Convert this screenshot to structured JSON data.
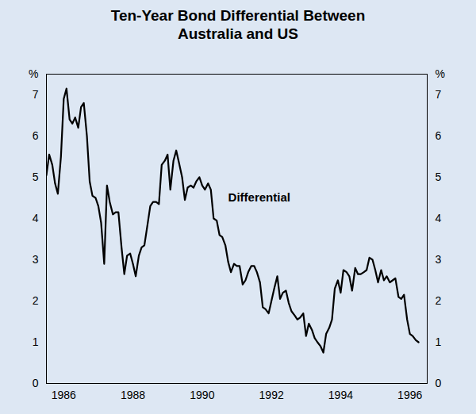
{
  "chart_data": {
    "type": "line",
    "title": "Ten-Year Bond Differential Between Australia and US",
    "x": [
      1986.0,
      1986.08,
      1986.17,
      1986.25,
      1986.33,
      1986.42,
      1986.5,
      1986.58,
      1986.67,
      1986.75,
      1986.83,
      1986.92,
      1987.0,
      1987.08,
      1987.17,
      1987.25,
      1987.33,
      1987.42,
      1987.5,
      1987.58,
      1987.67,
      1987.75,
      1987.83,
      1987.92,
      1988.0,
      1988.08,
      1988.17,
      1988.25,
      1988.33,
      1988.42,
      1988.5,
      1988.58,
      1988.67,
      1988.75,
      1988.83,
      1988.92,
      1989.0,
      1989.08,
      1989.17,
      1989.25,
      1989.33,
      1989.42,
      1989.5,
      1989.58,
      1989.67,
      1989.75,
      1989.83,
      1989.92,
      1990.0,
      1990.08,
      1990.17,
      1990.25,
      1990.33,
      1990.42,
      1990.5,
      1990.58,
      1990.67,
      1990.75,
      1990.83,
      1990.92,
      1991.0,
      1991.08,
      1991.17,
      1991.25,
      1991.33,
      1991.42,
      1991.5,
      1991.58,
      1991.67,
      1991.75,
      1991.83,
      1991.92,
      1992.0,
      1992.08,
      1992.17,
      1992.25,
      1992.33,
      1992.42,
      1992.5,
      1992.58,
      1992.67,
      1992.75,
      1992.83,
      1992.92,
      1993.0,
      1993.08,
      1993.17,
      1993.25,
      1993.33,
      1993.42,
      1993.5,
      1993.58,
      1993.67,
      1993.75,
      1993.83,
      1993.92,
      1994.0,
      1994.08,
      1994.17,
      1994.25,
      1994.33,
      1994.42,
      1994.5,
      1994.58,
      1994.67,
      1994.75,
      1994.83,
      1994.92,
      1995.0,
      1995.08,
      1995.17,
      1995.25,
      1995.33,
      1995.42,
      1995.5,
      1995.58,
      1995.67,
      1995.75,
      1995.83,
      1995.92,
      1996.0,
      1996.08,
      1996.17,
      1996.25,
      1996.33,
      1996.42,
      1996.5,
      1996.58,
      1996.67,
      1996.75
    ],
    "series": [
      {
        "color": "#000000",
        "values": [
          5.05,
          5.55,
          5.3,
          4.85,
          4.6,
          5.5,
          6.9,
          7.15,
          6.4,
          6.3,
          6.45,
          6.2,
          6.7,
          6.8,
          6.0,
          4.9,
          4.55,
          4.5,
          4.3,
          3.9,
          2.9,
          4.8,
          4.4,
          4.1,
          4.15,
          4.15,
          3.3,
          2.65,
          3.1,
          3.15,
          2.9,
          2.6,
          3.1,
          3.3,
          3.35,
          3.85,
          4.3,
          4.4,
          4.4,
          4.35,
          5.3,
          5.4,
          5.55,
          4.7,
          5.4,
          5.65,
          5.35,
          5.0,
          4.45,
          4.75,
          4.8,
          4.75,
          4.9,
          5.0,
          4.8,
          4.7,
          4.85,
          4.7,
          4.0,
          3.95,
          3.6,
          3.55,
          3.35,
          2.95,
          2.7,
          2.9,
          2.85,
          2.85,
          2.4,
          2.5,
          2.7,
          2.85,
          2.85,
          2.7,
          2.45,
          1.85,
          1.8,
          1.7,
          2.0,
          2.3,
          2.6,
          2.05,
          2.2,
          2.25,
          1.95,
          1.75,
          1.65,
          1.55,
          1.6,
          1.7,
          1.15,
          1.45,
          1.3,
          1.1,
          1.0,
          0.9,
          0.75,
          1.2,
          1.35,
          1.55,
          2.3,
          2.5,
          2.2,
          2.75,
          2.7,
          2.6,
          2.25,
          2.8,
          2.65,
          2.65,
          2.7,
          2.75,
          3.05,
          3.0,
          2.75,
          2.45,
          2.75,
          2.5,
          2.6,
          2.45,
          2.5,
          2.55,
          2.1,
          2.05,
          2.15,
          1.55,
          1.2,
          1.15,
          1.05,
          1.0
        ]
      }
    ],
    "xlim": [
      1986,
      1997
    ],
    "xticks": [
      {
        "value": 1986.5,
        "label": "1986"
      },
      {
        "value": 1988.5,
        "label": "1988"
      },
      {
        "value": 1990.5,
        "label": "1990"
      },
      {
        "value": 1992.5,
        "label": "1992"
      },
      {
        "value": 1994.5,
        "label": "1994"
      },
      {
        "value": 1996.5,
        "label": "1996"
      }
    ],
    "ylim": [
      0,
      7.5
    ],
    "yticks": [
      0,
      1,
      2,
      3,
      4,
      5,
      6,
      7
    ],
    "ylabel": "%",
    "annotations": [
      {
        "text": "Differential",
        "x": 1991.25,
        "y": 4.5
      }
    ]
  }
}
